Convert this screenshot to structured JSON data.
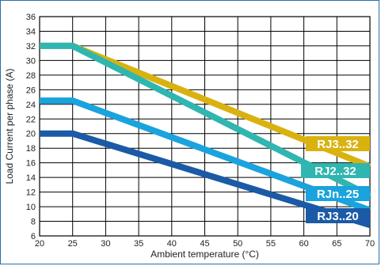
{
  "chart_data": {
    "type": "line",
    "title": "",
    "xlabel": "Ambient temperature (°C)",
    "ylabel": "Load Current per phase (A)",
    "xlim": [
      20,
      70
    ],
    "ylim": [
      6,
      36
    ],
    "xticks": [
      20,
      25,
      30,
      35,
      40,
      45,
      50,
      55,
      60,
      65,
      70
    ],
    "yticks": [
      6,
      8,
      10,
      12,
      14,
      16,
      18,
      20,
      22,
      24,
      26,
      28,
      30,
      32,
      34,
      36
    ],
    "grid": true,
    "legend": "inline-right",
    "series": [
      {
        "name": "RJ3..32",
        "color": "#d9b20f",
        "x": [
          20,
          25,
          70
        ],
        "y": [
          32,
          32,
          15.5
        ]
      },
      {
        "name": "RJ2..32",
        "color": "#2fb6b0",
        "x": [
          20,
          25,
          70
        ],
        "y": [
          32,
          32,
          11.5
        ]
      },
      {
        "name": "RJn..25",
        "color": "#1aa3dd",
        "x": [
          20,
          25,
          70
        ],
        "y": [
          24.5,
          24.5,
          9.5
        ]
      },
      {
        "name": "RJ3..20",
        "color": "#1b5aa6",
        "x": [
          20,
          25,
          70
        ],
        "y": [
          20,
          20,
          7.5
        ]
      }
    ]
  }
}
